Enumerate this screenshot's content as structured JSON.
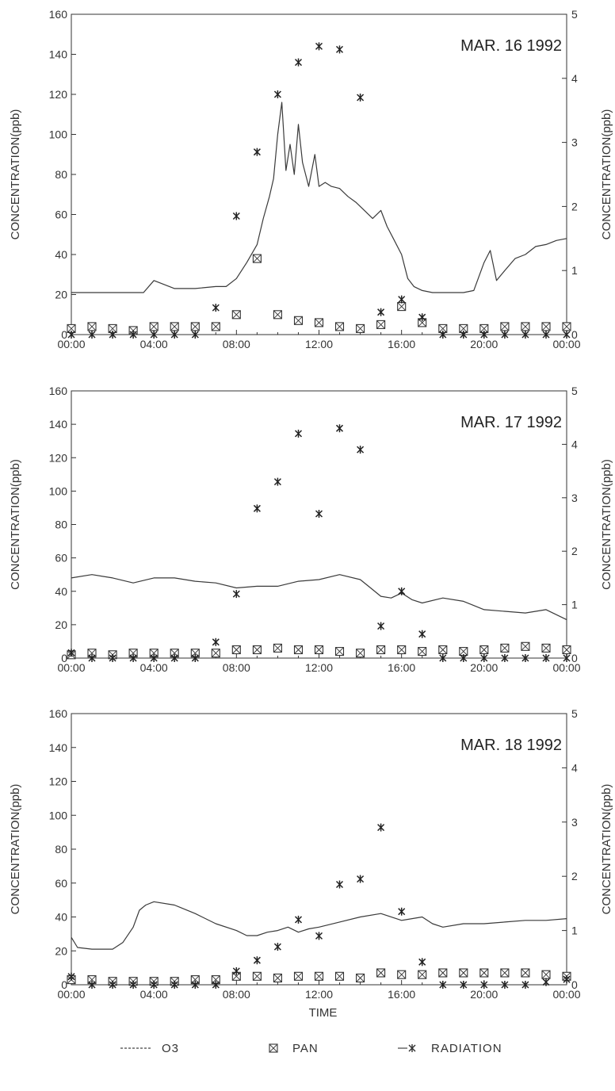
{
  "figure": {
    "xlabel": "TIME",
    "legend": [
      "O3",
      "PAN",
      "RADIATION"
    ]
  },
  "chart_data": [
    {
      "type": "line",
      "title": "MAR. 16 1992",
      "xlabel": "",
      "ylabel": "CONCENTRATION(ppb)",
      "y2label": "CONCENTRATION(ppb)",
      "ylim": [
        0,
        160
      ],
      "y2lim": [
        0,
        5
      ],
      "xlim": [
        0,
        24
      ],
      "xticks": [
        "00:00",
        "04:00",
        "08:00",
        "12:00",
        "16:00",
        "20:00",
        "00:00"
      ],
      "yticks": [
        "0",
        "20",
        "40",
        "60",
        "80",
        "100",
        "120",
        "140",
        "160"
      ],
      "y2ticks": [
        "0",
        "1",
        "2",
        "3",
        "4",
        "5"
      ],
      "grid": false,
      "legend_position": "bottom",
      "series": [
        {
          "name": "O3",
          "axis": "left",
          "x": [
            0,
            1,
            2,
            3,
            3.5,
            4,
            5,
            6,
            7,
            7.5,
            8,
            8.5,
            9,
            9.3,
            9.6,
            9.8,
            10,
            10.2,
            10.4,
            10.6,
            10.8,
            11,
            11.2,
            11.5,
            11.8,
            12,
            12.3,
            12.6,
            13,
            13.4,
            13.8,
            14.2,
            14.6,
            15,
            15.3,
            15.6,
            16,
            16.3,
            16.6,
            17,
            17.5,
            18,
            19,
            19.5,
            20,
            20.3,
            20.6,
            21,
            21.5,
            22,
            22.5,
            23,
            23.5,
            24
          ],
          "y": [
            21,
            21,
            21,
            21,
            21,
            27,
            23,
            23,
            24,
            24,
            28,
            36,
            45,
            58,
            69,
            78,
            100,
            116,
            82,
            95,
            80,
            105,
            86,
            74,
            90,
            74,
            76,
            74,
            73,
            69,
            66,
            62,
            58,
            62,
            54,
            48,
            40,
            28,
            24,
            22,
            21,
            21,
            21,
            22,
            36,
            42,
            27,
            32,
            38,
            40,
            44,
            45,
            47,
            48
          ]
        },
        {
          "name": "PAN",
          "axis": "left",
          "x": [
            0,
            1,
            2,
            3,
            4,
            5,
            6,
            7,
            8,
            9,
            10,
            11,
            12,
            13,
            14,
            15,
            16,
            17,
            18,
            19,
            20,
            21,
            22,
            23,
            24
          ],
          "y": [
            3,
            4,
            3,
            2,
            4,
            4,
            4,
            4,
            10,
            38,
            10,
            7,
            6,
            4,
            3,
            5,
            14,
            6,
            3,
            3,
            3,
            4,
            4,
            4,
            4
          ]
        },
        {
          "name": "RADIATION",
          "axis": "right",
          "x": [
            0,
            1,
            2,
            3,
            4,
            5,
            6,
            7,
            8,
            9,
            10,
            11,
            12,
            13,
            14,
            15,
            16,
            17,
            18,
            19,
            20,
            21,
            22,
            23,
            24
          ],
          "y": [
            0,
            0,
            0,
            0,
            0,
            0,
            0,
            0.42,
            1.85,
            2.85,
            3.75,
            4.25,
            4.5,
            4.45,
            3.7,
            0.35,
            0.55,
            0.27,
            0,
            0,
            0,
            0,
            0,
            0,
            0
          ]
        }
      ]
    },
    {
      "type": "line",
      "title": "MAR. 17 1992",
      "xlabel": "",
      "ylabel": "CONCENTRATION(ppb)",
      "y2label": "CONCENTRATION(ppb)",
      "ylim": [
        0,
        160
      ],
      "y2lim": [
        0,
        5
      ],
      "xlim": [
        0,
        24
      ],
      "xticks": [
        "00:00",
        "04:00",
        "08:00",
        "12:00",
        "16:00",
        "20:00",
        "00:00"
      ],
      "yticks": [
        "0",
        "20",
        "40",
        "60",
        "80",
        "100",
        "120",
        "140",
        "160"
      ],
      "y2ticks": [
        "0",
        "1",
        "2",
        "3",
        "4",
        "5"
      ],
      "grid": false,
      "legend_position": "bottom",
      "series": [
        {
          "name": "O3",
          "axis": "left",
          "x": [
            0,
            1,
            2,
            3,
            4,
            5,
            6,
            7,
            8,
            9,
            10,
            11,
            12,
            13,
            14,
            14.5,
            15,
            15.5,
            16,
            16.5,
            17,
            18,
            19,
            20,
            21,
            22,
            23,
            24
          ],
          "y": [
            48,
            50,
            48,
            45,
            48,
            48,
            46,
            45,
            42,
            43,
            43,
            46,
            47,
            50,
            47,
            42,
            37,
            36,
            39,
            35,
            33,
            36,
            34,
            29,
            28,
            27,
            29,
            23
          ]
        },
        {
          "name": "PAN",
          "axis": "left",
          "x": [
            0,
            1,
            2,
            3,
            4,
            5,
            6,
            7,
            8,
            9,
            10,
            11,
            12,
            13,
            14,
            15,
            16,
            17,
            18,
            19,
            20,
            21,
            22,
            23,
            24
          ],
          "y": [
            2,
            3,
            2,
            3,
            3,
            3,
            3,
            3,
            5,
            5,
            6,
            5,
            5,
            4,
            3,
            5,
            5,
            4,
            5,
            4,
            5,
            6,
            7,
            6,
            5
          ]
        },
        {
          "name": "RADIATION",
          "axis": "right",
          "x": [
            0,
            1,
            2,
            3,
            4,
            5,
            6,
            7,
            8,
            9,
            10,
            11,
            12,
            13,
            14,
            15,
            16,
            17,
            18,
            19,
            20,
            21,
            22,
            23,
            24
          ],
          "y": [
            0.1,
            0,
            0,
            0,
            0,
            0,
            0,
            0.3,
            1.2,
            2.8,
            3.3,
            4.2,
            2.7,
            4.3,
            3.9,
            0.6,
            1.25,
            0.45,
            0,
            0,
            0,
            0,
            0,
            0,
            0
          ]
        }
      ]
    },
    {
      "type": "line",
      "title": "MAR. 18 1992",
      "xlabel": "TIME",
      "ylabel": "CONCENTRATION(ppb)",
      "y2label": "CONCENTRATION(ppb)",
      "ylim": [
        0,
        160
      ],
      "y2lim": [
        0,
        5
      ],
      "xlim": [
        0,
        24
      ],
      "xticks": [
        "00:00",
        "04:00",
        "08:00",
        "12:00",
        "16:00",
        "20:00",
        "00:00"
      ],
      "yticks": [
        "0",
        "20",
        "40",
        "60",
        "80",
        "100",
        "120",
        "140",
        "160"
      ],
      "y2ticks": [
        "0",
        "1",
        "2",
        "3",
        "4",
        "5"
      ],
      "grid": false,
      "legend_position": "bottom",
      "series": [
        {
          "name": "O3",
          "axis": "left",
          "x": [
            0,
            0.3,
            1,
            2,
            2.5,
            3,
            3.3,
            3.6,
            4,
            5,
            6,
            7,
            8,
            8.5,
            9,
            9.5,
            10,
            10.5,
            11,
            11.5,
            12,
            13,
            14,
            15,
            16,
            17,
            17.5,
            18,
            19,
            20,
            21,
            22,
            23,
            24
          ],
          "y": [
            28,
            22,
            21,
            21,
            25,
            34,
            44,
            47,
            49,
            47,
            42,
            36,
            32,
            29,
            29,
            31,
            32,
            34,
            31,
            33,
            34,
            37,
            40,
            42,
            38,
            40,
            36,
            34,
            36,
            36,
            37,
            38,
            38,
            39
          ]
        },
        {
          "name": "PAN",
          "axis": "left",
          "x": [
            0,
            1,
            2,
            3,
            4,
            5,
            6,
            7,
            8,
            9,
            10,
            11,
            12,
            13,
            14,
            15,
            16,
            17,
            18,
            19,
            20,
            21,
            22,
            23,
            24
          ],
          "y": [
            3,
            3,
            2,
            2,
            2,
            2,
            3,
            3,
            5,
            5,
            4,
            5,
            5,
            5,
            4,
            7,
            6,
            6,
            7,
            7,
            7,
            7,
            7,
            6,
            5
          ]
        },
        {
          "name": "RADIATION",
          "axis": "right",
          "x": [
            0,
            1,
            2,
            3,
            4,
            5,
            6,
            7,
            8,
            9,
            10,
            11,
            12,
            13,
            14,
            15,
            16,
            17,
            18,
            19,
            20,
            21,
            22,
            23,
            24
          ],
          "y": [
            0.15,
            0,
            0,
            0,
            0,
            0,
            0,
            0,
            0.25,
            0.45,
            0.7,
            1.2,
            0.9,
            1.85,
            1.95,
            2.9,
            1.35,
            0.42,
            0,
            0,
            0,
            0,
            0,
            0.05,
            0.1
          ]
        }
      ]
    }
  ]
}
